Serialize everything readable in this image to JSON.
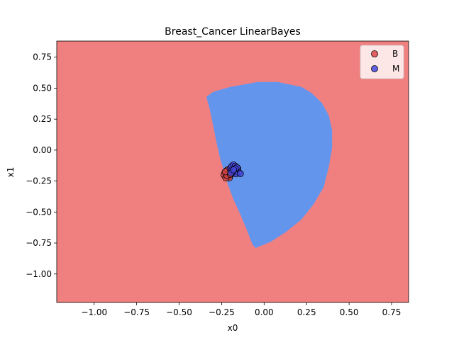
{
  "chart_data": {
    "type": "scatter",
    "title": "Breast_Cancer LinearBayes",
    "xlabel": "x0",
    "ylabel": "x1",
    "xlim": [
      -1.22,
      0.85
    ],
    "ylim": [
      -1.23,
      0.88
    ],
    "xticks": [
      -1.0,
      -0.75,
      -0.5,
      -0.25,
      0.0,
      0.25,
      0.5,
      0.75
    ],
    "xtick_labels": [
      "−1.00",
      "−0.75",
      "−0.50",
      "−0.25",
      "0.00",
      "0.25",
      "0.50",
      "0.75"
    ],
    "yticks": [
      0.75,
      0.5,
      0.25,
      0.0,
      -0.25,
      -0.5,
      -0.75,
      -1.0
    ],
    "ytick_labels": [
      "0.75",
      "0.50",
      "0.25",
      "0.00",
      "−0.25",
      "−0.50",
      "−0.75",
      "−1.00"
    ],
    "grid": false,
    "legend_position": "top-right",
    "background_region": {
      "label": "B",
      "color": "#f08080"
    },
    "decision_region": {
      "label": "M",
      "color": "#6495ed",
      "boundary": [
        [
          -0.04,
          0.55
        ],
        [
          0.08,
          0.55
        ],
        [
          0.15,
          0.53
        ],
        [
          0.22,
          0.51
        ],
        [
          0.28,
          0.46
        ],
        [
          0.34,
          0.38
        ],
        [
          0.38,
          0.28
        ],
        [
          0.4,
          0.16
        ],
        [
          0.4,
          0.02
        ],
        [
          0.38,
          -0.14
        ],
        [
          0.35,
          -0.3
        ],
        [
          0.29,
          -0.44
        ],
        [
          0.22,
          -0.56
        ],
        [
          0.13,
          -0.66
        ],
        [
          0.04,
          -0.74
        ],
        [
          -0.05,
          -0.79
        ],
        [
          -0.07,
          -0.76
        ],
        [
          -0.1,
          -0.65
        ],
        [
          -0.14,
          -0.52
        ],
        [
          -0.18,
          -0.4
        ],
        [
          -0.21,
          -0.29
        ],
        [
          -0.23,
          -0.2
        ],
        [
          -0.26,
          -0.06
        ],
        [
          -0.28,
          0.06
        ],
        [
          -0.3,
          0.2
        ],
        [
          -0.32,
          0.33
        ],
        [
          -0.34,
          0.43
        ],
        [
          -0.3,
          0.47
        ],
        [
          -0.2,
          0.51
        ],
        [
          -0.12,
          0.53
        ]
      ]
    },
    "series": [
      {
        "name": "B",
        "color": "#e04848",
        "points": [
          [
            -0.22,
            -0.19
          ],
          [
            -0.215,
            -0.2
          ],
          [
            -0.205,
            -0.18
          ],
          [
            -0.225,
            -0.21
          ],
          [
            -0.21,
            -0.215
          ],
          [
            -0.2,
            -0.205
          ],
          [
            -0.23,
            -0.185
          ],
          [
            -0.195,
            -0.17
          ],
          [
            -0.22,
            -0.165
          ],
          [
            -0.21,
            -0.175
          ],
          [
            -0.235,
            -0.2
          ],
          [
            -0.205,
            -0.225
          ],
          [
            -0.19,
            -0.19
          ],
          [
            -0.215,
            -0.16
          ],
          [
            -0.225,
            -0.225
          ],
          [
            -0.2,
            -0.18
          ],
          [
            -0.21,
            -0.195
          ],
          [
            -0.218,
            -0.205
          ],
          [
            -0.228,
            -0.175
          ],
          [
            -0.198,
            -0.195
          ]
        ]
      },
      {
        "name": "M",
        "color": "#4848e0",
        "points": [
          [
            -0.2,
            -0.15
          ],
          [
            -0.19,
            -0.16
          ],
          [
            -0.18,
            -0.14
          ],
          [
            -0.17,
            -0.17
          ],
          [
            -0.16,
            -0.16
          ],
          [
            -0.15,
            -0.18
          ],
          [
            -0.19,
            -0.13
          ],
          [
            -0.18,
            -0.12
          ],
          [
            -0.17,
            -0.13
          ],
          [
            -0.175,
            -0.18
          ],
          [
            -0.165,
            -0.19
          ],
          [
            -0.155,
            -0.15
          ],
          [
            -0.185,
            -0.175
          ],
          [
            -0.14,
            -0.19
          ],
          [
            -0.16,
            -0.14
          ],
          [
            -0.195,
            -0.185
          ],
          [
            -0.17,
            -0.15
          ],
          [
            -0.18,
            -0.16
          ]
        ]
      }
    ]
  }
}
